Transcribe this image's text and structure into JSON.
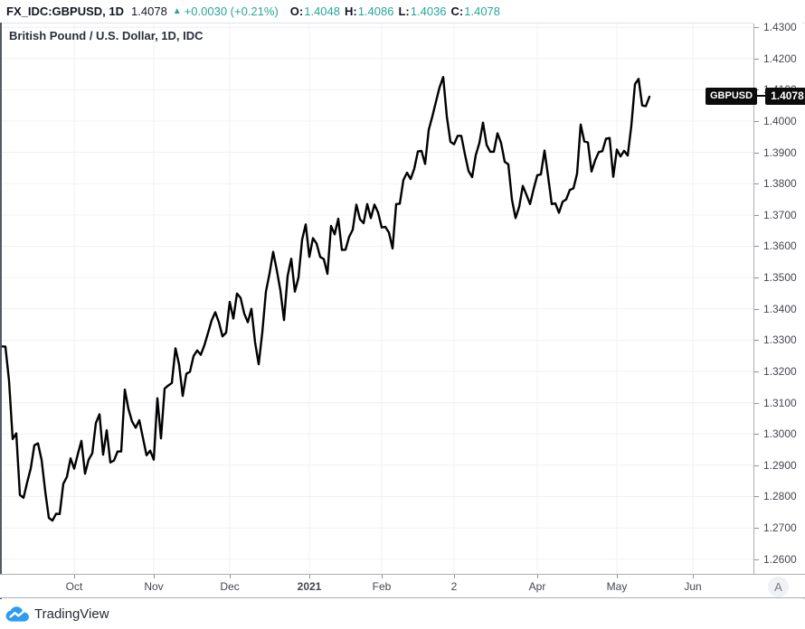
{
  "header": {
    "symbol_text": "FX_IDC:GBPUSD, 1D",
    "last_price": "1.4078",
    "change_arrow": "▲",
    "change_text": "+0.0030 (+0.21%)",
    "ohlc": [
      {
        "label": "O:",
        "value": "1.4048"
      },
      {
        "label": "H:",
        "value": "1.4086"
      },
      {
        "label": "L:",
        "value": "1.4036"
      },
      {
        "label": "C:",
        "value": "1.4078"
      }
    ],
    "accent_color": "#26a69a"
  },
  "chart": {
    "title": "British Pound / U.S. Dollar, 1D, IDC",
    "price_label": {
      "symbol": "GBPUSD",
      "value": "1.4078"
    },
    "auto_scale_label": "A"
  },
  "footer": {
    "brand": "TradingView",
    "logo_color": "#2d9cf0"
  },
  "chart_data": {
    "type": "line",
    "title": "British Pound / U.S. Dollar, 1D, IDC",
    "series_name": "GBPUSD daily close",
    "line_color": "#000000",
    "grid": true,
    "ylim": [
      1.255,
      1.4312
    ],
    "y_ticks": [
      1.26,
      1.27,
      1.28,
      1.29,
      1.3,
      1.31,
      1.32,
      1.33,
      1.34,
      1.35,
      1.36,
      1.37,
      1.38,
      1.39,
      1.4,
      1.41,
      1.42,
      1.43
    ],
    "x_ticks": [
      {
        "label": "Oct",
        "index": 20
      },
      {
        "label": "Nov",
        "index": 42
      },
      {
        "label": "Dec",
        "index": 63
      },
      {
        "label": "2021",
        "index": 85,
        "bold": true
      },
      {
        "label": "Feb",
        "index": 105
      },
      {
        "label": "2",
        "index": 125
      },
      {
        "label": "Apr",
        "index": 148
      },
      {
        "label": "May",
        "index": 170
      },
      {
        "label": "Jun",
        "index": 191
      }
    ],
    "x_range_note": "Sep 2020 - 14 May 2021, one point per trading day",
    "values": [
      1.328,
      1.3279,
      1.317,
      1.2984,
      1.3002,
      1.2805,
      1.2796,
      1.2845,
      1.289,
      1.2964,
      1.297,
      1.2917,
      1.2817,
      1.2732,
      1.2723,
      1.2745,
      1.2744,
      1.2841,
      1.2863,
      1.2922,
      1.2889,
      1.2935,
      1.2978,
      1.2873,
      1.2918,
      1.2938,
      1.3035,
      1.3063,
      1.2934,
      1.3012,
      1.2909,
      1.2915,
      1.2944,
      1.2944,
      1.3142,
      1.308,
      1.304,
      1.302,
      1.3044,
      1.2988,
      1.2932,
      1.2947,
      1.2918,
      1.3114,
      1.2986,
      1.3145,
      1.3155,
      1.3163,
      1.3274,
      1.3222,
      1.3122,
      1.3192,
      1.3199,
      1.3249,
      1.3267,
      1.3253,
      1.3284,
      1.3323,
      1.3363,
      1.3389,
      1.3357,
      1.3312,
      1.3324,
      1.3422,
      1.3369,
      1.3449,
      1.3435,
      1.3385,
      1.3357,
      1.34,
      1.3293,
      1.3223,
      1.3325,
      1.3455,
      1.3513,
      1.3582,
      1.3524,
      1.3459,
      1.3364,
      1.3505,
      1.356,
      1.3455,
      1.35,
      1.3621,
      1.367,
      1.3566,
      1.3626,
      1.3609,
      1.3566,
      1.3559,
      1.3512,
      1.3665,
      1.3638,
      1.3688,
      1.3588,
      1.3589,
      1.363,
      1.3653,
      1.3733,
      1.3686,
      1.3674,
      1.3735,
      1.369,
      1.3733,
      1.3708,
      1.366,
      1.3662,
      1.3644,
      1.3593,
      1.3735,
      1.3736,
      1.3812,
      1.3835,
      1.3815,
      1.3848,
      1.3903,
      1.3905,
      1.3863,
      1.3972,
      1.4015,
      1.4062,
      1.4108,
      1.4141,
      1.4015,
      1.3934,
      1.3926,
      1.3953,
      1.3953,
      1.3894,
      1.3841,
      1.3821,
      1.3891,
      1.393,
      1.3995,
      1.3924,
      1.3902,
      1.3902,
      1.3961,
      1.393,
      1.387,
      1.3862,
      1.3749,
      1.369,
      1.3726,
      1.3793,
      1.3765,
      1.3735,
      1.3783,
      1.3827,
      1.383,
      1.3906,
      1.3823,
      1.3735,
      1.3737,
      1.3707,
      1.3742,
      1.375,
      1.378,
      1.3785,
      1.3832,
      1.3989,
      1.3935,
      1.3932,
      1.3839,
      1.3875,
      1.3901,
      1.3904,
      1.3944,
      1.3946,
      1.3822,
      1.3909,
      1.3887,
      1.3905,
      1.389,
      1.3985,
      1.4118,
      1.4135,
      1.405,
      1.4048,
      1.4078
    ]
  }
}
